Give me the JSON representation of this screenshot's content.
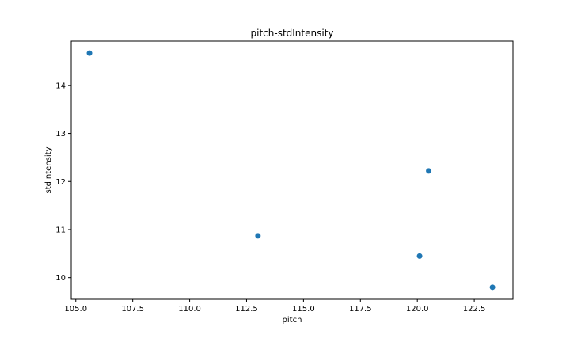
{
  "chart_data": {
    "type": "scatter",
    "title": "pitch-stdIntensity",
    "xlabel": "pitch",
    "ylabel": "stdIntensity",
    "xlim": [
      104.8,
      124.2
    ],
    "ylim": [
      9.55,
      14.92
    ],
    "xticks": [
      105.0,
      107.5,
      110.0,
      112.5,
      115.0,
      117.5,
      120.0,
      122.5
    ],
    "xtick_labels": [
      "105.0",
      "107.5",
      "110.0",
      "112.5",
      "115.0",
      "117.5",
      "120.0",
      "122.5"
    ],
    "yticks": [
      10,
      11,
      12,
      13,
      14
    ],
    "ytick_labels": [
      "10",
      "11",
      "12",
      "13",
      "14"
    ],
    "grid": false,
    "series": [
      {
        "name": "pitch-stdIntensity",
        "color": "#1f77b4",
        "x": [
          105.6,
          113.0,
          120.1,
          120.5,
          123.3
        ],
        "y": [
          14.67,
          10.87,
          10.45,
          12.22,
          9.8
        ]
      }
    ]
  }
}
